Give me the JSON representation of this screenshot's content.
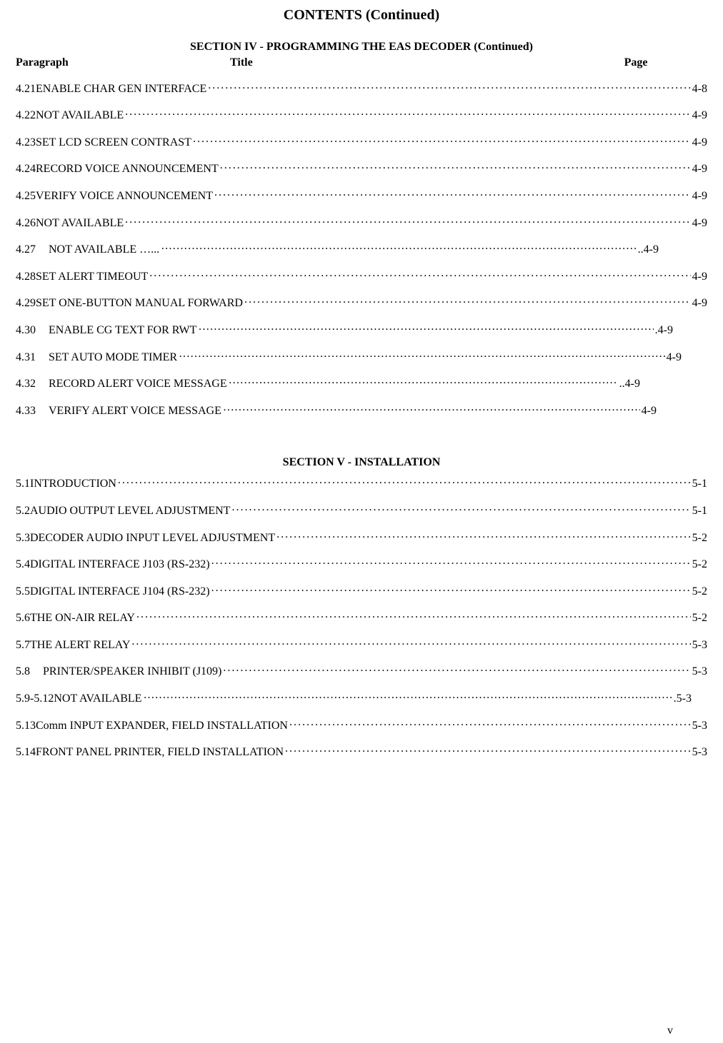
{
  "main_title": "CONTENTS (Continued)",
  "page_number": "v",
  "colors": {
    "background": "#ffffff",
    "text": "#000000"
  },
  "typography": {
    "family": "Times New Roman",
    "title_size_pt": 20,
    "section_size_pt": 16,
    "body_size_pt": 16
  },
  "col_headers": {
    "paragraph": "Paragraph",
    "title": "Title",
    "page": "Page"
  },
  "section4": {
    "header": "SECTION IV - PROGRAMMING THE EAS DECODER (Continued)",
    "rows": [
      {
        "para": "4.21",
        "indent": 0,
        "space_after": false,
        "title": "ENABLE CHAR GEN INTERFACE",
        "page": "4-8",
        "leader": "dot",
        "full": true
      },
      {
        "para": "4.22",
        "indent": 0,
        "space_after": false,
        "title": "NOT AVAILABLE",
        "page": "4-9",
        "leader": "dot",
        "full": true
      },
      {
        "para": "4.23",
        "indent": 0,
        "space_after": false,
        "title": "SET LCD SCREEN CONTRAST ",
        "page": "4-9",
        "leader": "dot",
        "full": true
      },
      {
        "para": "4.24",
        "indent": 0,
        "space_after": false,
        "title": "RECORD VOICE ANNOUNCEMENT ",
        "page": "4-9",
        "leader": "dot",
        "full": true
      },
      {
        "para": "4.25",
        "indent": 0,
        "space_after": false,
        "title": "VERIFY VOICE ANNOUNCEMENT ",
        "page": "4-9",
        "leader": "dot",
        "full": true
      },
      {
        "para": "4.26",
        "indent": 0,
        "space_after": false,
        "title": "NOT AVAILABLE",
        "page": "4-9",
        "leader": "dot",
        "full": true
      },
      {
        "para": "4.27",
        "indent": 0,
        "space_after": true,
        "title": "NOT AVAILABLE …...",
        "page": "..4-9",
        "leader": "alt",
        "full": false,
        "short_width": 900
      },
      {
        "para": "4.28",
        "indent": 0,
        "space_after": false,
        "title": "SET ALERT TIMEOUT",
        "page": "4-9",
        "leader": "dot",
        "full": true
      },
      {
        "para": "4.29",
        "indent": 0,
        "space_after": false,
        "title": "SET ONE-BUTTON MANUAL FORWARD",
        "page": "4-9",
        "leader": "dot",
        "full": true
      },
      {
        "para": "4.30",
        "indent": 0,
        "space_after": true,
        "title": "ENABLE CG TEXT FOR RWT",
        "page": ".4-9",
        "leader": "alt",
        "full": false,
        "short_width": 920
      },
      {
        "para": "4.31",
        "indent": 0,
        "space_after": true,
        "title": "SET AUTO MODE TIMER",
        "page": "4-9",
        "leader": "alt",
        "full": false,
        "short_width": 932
      },
      {
        "para": "4.32",
        "indent": 0,
        "space_after": true,
        "title": "RECORD ALERT VOICE MESSAGE",
        "page": "..4-9",
        "leader": "alt",
        "full": false,
        "short_width": 874
      },
      {
        "para": "4.33",
        "indent": 0,
        "space_after": true,
        "title": " VERIFY ALERT VOICE MESSAGE",
        "page": "4-9",
        "leader": "alt",
        "full": false,
        "short_width": 897
      }
    ]
  },
  "section5": {
    "header": "SECTION V - INSTALLATION",
    "rows": [
      {
        "para": "5.1 ",
        "indent": 0,
        "space_after": false,
        "title": "INTRODUCTION ",
        "page": "5-1",
        "leader": "dot",
        "full": true
      },
      {
        "para": "5.2 ",
        "indent": 0,
        "space_after": false,
        "title": "AUDIO OUTPUT LEVEL ADJUSTMENT ",
        "page": "5-1",
        "leader": "dot",
        "full": true
      },
      {
        "para": "5.3 ",
        "indent": 0,
        "space_after": false,
        "title": "DECODER AUDIO INPUT LEVEL ADJUSTMENT",
        "page": "5-2",
        "leader": "dot",
        "full": true
      },
      {
        "para": "5.4 ",
        "indent": 0,
        "space_after": false,
        "title": "DIGITAL INTERFACE J103 (RS-232) ",
        "page": "5-2",
        "leader": "dot",
        "full": true
      },
      {
        "para": "5.5 ",
        "indent": 0,
        "space_after": false,
        "title": "DIGITAL INTERFACE J104 (RS-232) ",
        "page": "5-2",
        "leader": "dot",
        "full": true
      },
      {
        "para": "5.6",
        "indent": 0,
        "space_after": false,
        "title": "THE ON-AIR RELAY",
        "page": "5-2",
        "leader": "dot",
        "full": true
      },
      {
        "para": "5.7 ",
        "indent": 0,
        "space_after": false,
        "title": "THE ALERT RELAY ",
        "page": "5-3",
        "leader": "dot",
        "full": true
      },
      {
        "para": "5.8 ",
        "indent": 0,
        "space_after": true,
        "title": " PRINTER/SPEAKER INHIBIT (J109)",
        "page": "5-3",
        "leader": "dot",
        "full": true
      },
      {
        "para": "5.9-5.12 ",
        "indent": 0,
        "space_after": false,
        "title": " NOT AVAILABLE",
        "page": ".5-3",
        "leader": "alt",
        "full": false,
        "short_width": 946
      },
      {
        "para": "5.13 ",
        "indent": 0,
        "space_after": false,
        "title": "Comm INPUT EXPANDER, FIELD INSTALLATION ",
        "page": "5-3",
        "leader": "dot",
        "full": true
      },
      {
        "para": "5.14",
        "indent": 0,
        "space_after": false,
        "title": "FRONT PANEL PRINTER, FIELD INSTALLATION ",
        "page": "5-3",
        "leader": "dot",
        "full": true
      }
    ]
  }
}
